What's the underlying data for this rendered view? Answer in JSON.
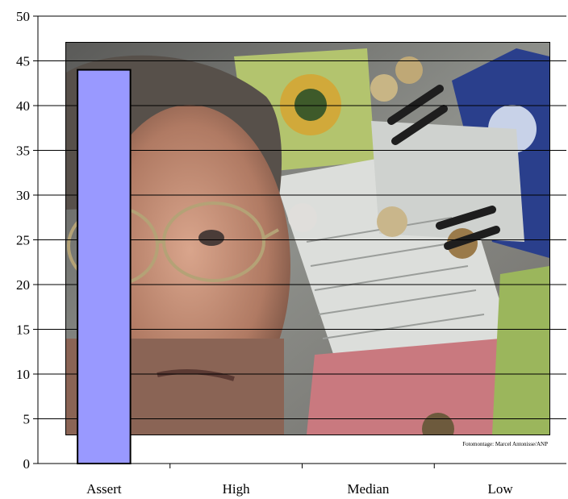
{
  "chart_data": {
    "type": "bar",
    "categories": [
      "Assert",
      "High",
      "Median",
      "Low"
    ],
    "values": [
      44,
      0,
      0,
      0
    ],
    "ylim": [
      0,
      50
    ],
    "yticks": [
      0,
      5,
      10,
      15,
      20,
      25,
      30,
      35,
      40,
      45,
      50
    ],
    "grid": true,
    "bar_color": "#9999ff",
    "bar_edge_color": "#000000",
    "background_image": {
      "description": "photo montage of a man with glasses over banknotes, coins and receipts",
      "credit": "Fotomontage: Marcel Antonisse/ANP"
    }
  }
}
